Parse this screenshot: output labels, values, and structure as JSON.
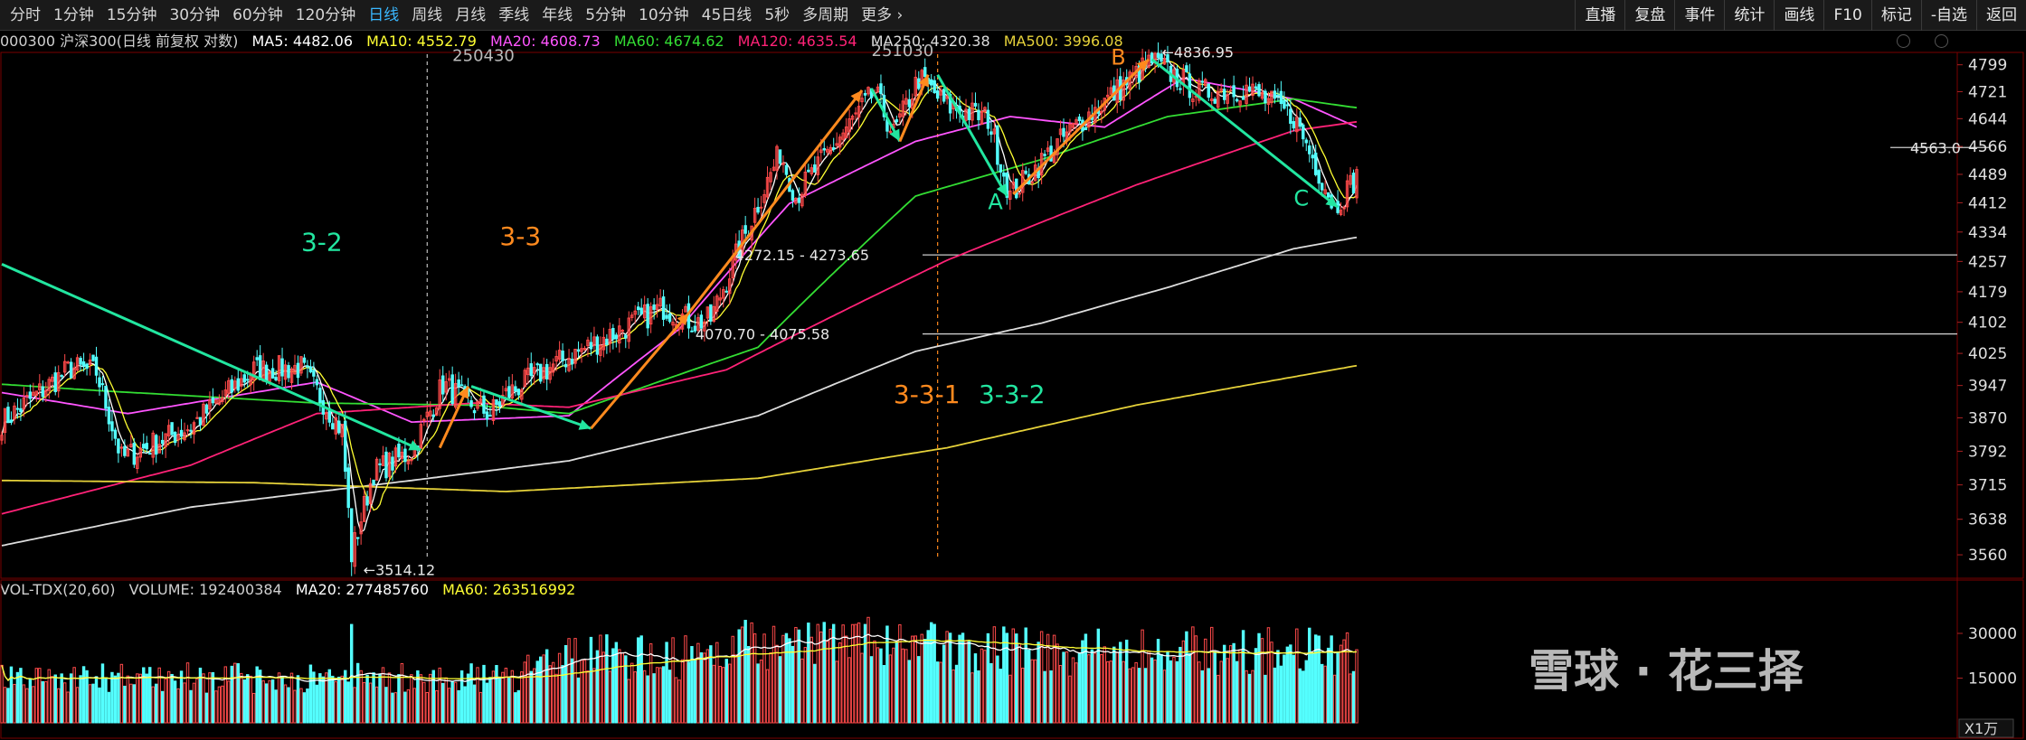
{
  "toolbar": {
    "periods": [
      "分时",
      "1分钟",
      "15分钟",
      "30分钟",
      "60分钟",
      "120分钟",
      "日线",
      "周线",
      "月线",
      "季线",
      "年线",
      "5分钟",
      "10分钟",
      "45日线",
      "5秒",
      "多周期",
      "更多"
    ],
    "active_index": 6,
    "right_buttons": [
      "直播",
      "复盘",
      "事件",
      "统计",
      "画线",
      "F10",
      "标记",
      "-自选",
      "返回"
    ]
  },
  "info": {
    "symbol": "000300 沪深300(日线 前复权 对数)",
    "ma5": "MA5: 4482.06",
    "ma10": "MA10: 4552.79",
    "ma20": "MA20: 4608.73",
    "ma60": "MA60: 4674.62",
    "ma120": "MA120: 4635.54",
    "ma250": "MA250: 4320.38",
    "ma500": "MA500: 3996.08"
  },
  "vol_info": {
    "name": "VOL-TDX(20,60)",
    "volume": "VOLUME: 192400384",
    "ma20": "MA20: 277485760",
    "ma60": "MA60: 263516992"
  },
  "colors": {
    "up": "#ff4a4a",
    "down": "#54ffff",
    "ma5": "#ffffff",
    "ma10": "#ffff33",
    "ma20": "#ff55ff",
    "ma60": "#33dd33",
    "ma120": "#ff2277",
    "ma250": "#dddddd",
    "ma500": "#e6d23a",
    "trend_green": "#22e6a0",
    "trend_orange": "#ff8a1e"
  },
  "chart_data": {
    "type": "candlestick",
    "y_scale": "log",
    "ylim": [
      3525,
      4830
    ],
    "y_ticks": [
      4799,
      4721,
      4644,
      4566,
      4489,
      4412,
      4334,
      4257,
      4179,
      4102,
      4025,
      3947,
      3870,
      3792,
      3715,
      3638,
      3560
    ],
    "candles_summary": "daily candles of CSI 300, roughly Nov 2024 – Jan 2026",
    "waypoints": [
      {
        "i": 0,
        "p": 3860
      },
      {
        "i": 22,
        "p": 3990
      },
      {
        "i": 30,
        "p": 3980
      },
      {
        "i": 38,
        "p": 3775
      },
      {
        "i": 60,
        "p": 3850
      },
      {
        "i": 80,
        "p": 3985
      },
      {
        "i": 95,
        "p": 3990
      },
      {
        "i": 108,
        "p": 3840
      },
      {
        "i": 111,
        "p": 3560
      },
      {
        "i": 118,
        "p": 3745
      },
      {
        "i": 130,
        "p": 3790
      },
      {
        "i": 140,
        "p": 3950
      },
      {
        "i": 148,
        "p": 3905
      },
      {
        "i": 155,
        "p": 3880
      },
      {
        "i": 160,
        "p": 3925
      },
      {
        "i": 176,
        "p": 4000
      },
      {
        "i": 210,
        "p": 4140
      },
      {
        "i": 220,
        "p": 4100
      },
      {
        "i": 225,
        "p": 4110
      },
      {
        "i": 247,
        "p": 4550
      },
      {
        "i": 252,
        "p": 4430
      },
      {
        "i": 277,
        "p": 4720
      },
      {
        "i": 283,
        "p": 4600
      },
      {
        "i": 291,
        "p": 4760
      },
      {
        "i": 300,
        "p": 4680
      },
      {
        "i": 313,
        "p": 4645
      },
      {
        "i": 320,
        "p": 4430
      },
      {
        "i": 338,
        "p": 4600
      },
      {
        "i": 365,
        "p": 4810
      },
      {
        "i": 380,
        "p": 4720
      },
      {
        "i": 395,
        "p": 4730
      },
      {
        "i": 410,
        "p": 4650
      },
      {
        "i": 423,
        "p": 4400
      },
      {
        "i": 430,
        "p": 4483
      }
    ],
    "ma_lines": [
      {
        "name": "MA20",
        "points": [
          {
            "i": 0,
            "p": 3930
          },
          {
            "i": 40,
            "p": 3880
          },
          {
            "i": 100,
            "p": 3955
          },
          {
            "i": 130,
            "p": 3860
          },
          {
            "i": 180,
            "p": 3875
          },
          {
            "i": 215,
            "p": 4085
          },
          {
            "i": 250,
            "p": 4410
          },
          {
            "i": 290,
            "p": 4580
          },
          {
            "i": 320,
            "p": 4650
          },
          {
            "i": 350,
            "p": 4620
          },
          {
            "i": 375,
            "p": 4760
          },
          {
            "i": 410,
            "p": 4700
          },
          {
            "i": 430,
            "p": 4620
          }
        ]
      },
      {
        "name": "MA60",
        "points": [
          {
            "i": 0,
            "p": 3950
          },
          {
            "i": 30,
            "p": 3935
          },
          {
            "i": 100,
            "p": 3905
          },
          {
            "i": 150,
            "p": 3900
          },
          {
            "i": 180,
            "p": 3880
          },
          {
            "i": 240,
            "p": 4040
          },
          {
            "i": 290,
            "p": 4430
          },
          {
            "i": 330,
            "p": 4530
          },
          {
            "i": 370,
            "p": 4650
          },
          {
            "i": 410,
            "p": 4700
          },
          {
            "i": 430,
            "p": 4675
          }
        ]
      },
      {
        "name": "MA120",
        "points": [
          {
            "i": 0,
            "p": 3650
          },
          {
            "i": 60,
            "p": 3760
          },
          {
            "i": 100,
            "p": 3880
          },
          {
            "i": 150,
            "p": 3905
          },
          {
            "i": 180,
            "p": 3895
          },
          {
            "i": 230,
            "p": 3985
          },
          {
            "i": 300,
            "p": 4260
          },
          {
            "i": 360,
            "p": 4460
          },
          {
            "i": 410,
            "p": 4610
          },
          {
            "i": 430,
            "p": 4635
          }
        ]
      },
      {
        "name": "MA250",
        "points": [
          {
            "i": 0,
            "p": 3580
          },
          {
            "i": 60,
            "p": 3665
          },
          {
            "i": 130,
            "p": 3725
          },
          {
            "i": 180,
            "p": 3770
          },
          {
            "i": 240,
            "p": 3875
          },
          {
            "i": 290,
            "p": 4030
          },
          {
            "i": 330,
            "p": 4100
          },
          {
            "i": 370,
            "p": 4190
          },
          {
            "i": 410,
            "p": 4290
          },
          {
            "i": 430,
            "p": 4320
          }
        ]
      },
      {
        "name": "MA500",
        "points": [
          {
            "i": 0,
            "p": 3725
          },
          {
            "i": 80,
            "p": 3720
          },
          {
            "i": 160,
            "p": 3700
          },
          {
            "i": 240,
            "p": 3730
          },
          {
            "i": 300,
            "p": 3800
          },
          {
            "i": 360,
            "p": 3900
          },
          {
            "i": 430,
            "p": 3995
          }
        ]
      }
    ],
    "annotations": {
      "labels": [
        {
          "text": "3-2",
          "i": 95,
          "p": 4285,
          "color": "#22e6a0"
        },
        {
          "text": "3-3",
          "i": 158,
          "p": 4300,
          "color": "#ff8a1e"
        },
        {
          "text": "3-3-1",
          "i": 283,
          "p": 3905,
          "color": "#ff8a1e"
        },
        {
          "text": "3-3-2",
          "i": 310,
          "p": 3905,
          "color": "#22e6a0"
        },
        {
          "text": "A",
          "i": 313,
          "p": 4395,
          "color": "#22e6a0"
        },
        {
          "text": "B",
          "i": 352,
          "p": 4800,
          "color": "#ff8a1e"
        },
        {
          "text": "C",
          "i": 410,
          "p": 4405,
          "color": "#22e6a0"
        },
        {
          "text": "250430",
          "i": 143,
          "p": 4810,
          "color": "#bbbbbb"
        },
        {
          "text": "251030",
          "i": 276,
          "p": 4825,
          "color": "#bbbbbb"
        }
      ],
      "price_labels": [
        "3514.12",
        "4272.15 - 4273.65",
        "4070.70 - 4075.58",
        "4836.95",
        "4563.0"
      ],
      "vertical_dashed": [
        {
          "i": 135,
          "color": "#bbbbbb"
        },
        {
          "i": 297,
          "color": "#ff8a1e"
        }
      ],
      "horizontal_lines": [
        4274,
        4073,
        4563
      ]
    },
    "volume": {
      "y_ticks": [
        30000,
        15000
      ],
      "unit": "X1万",
      "ma_lines": [
        "MA20",
        "MA60"
      ]
    }
  },
  "watermark": "雪球 · 花三择"
}
